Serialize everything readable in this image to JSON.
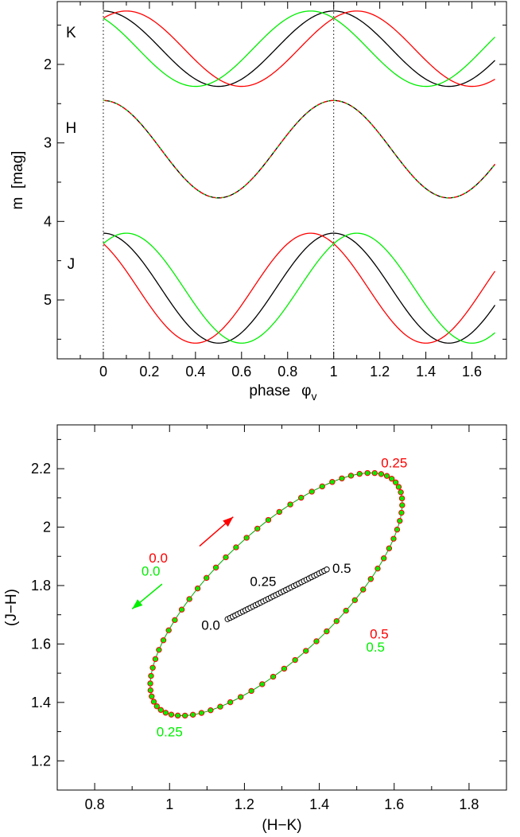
{
  "chart_data": [
    {
      "type": "line",
      "title": "",
      "xlabel": "phase",
      "xlabel_symbol": "φ",
      "xlabel_subscript": "v",
      "ylabel": "m  [mag]",
      "xlim": [
        -0.2,
        1.75
      ],
      "ylim": [
        5.75,
        1.2
      ],
      "y_inverted": true,
      "xticks": [
        0,
        0.2,
        0.4,
        0.6,
        0.8,
        1,
        1.2,
        1.4,
        1.6
      ],
      "xtick_labels": [
        "0",
        "0.2",
        "0.4",
        "0.6",
        "0.8",
        "1",
        "1.2",
        "1.4",
        "1.6"
      ],
      "yticks": [
        2,
        3,
        4,
        5
      ],
      "ytick_labels": [
        "2",
        "3",
        "4",
        "5"
      ],
      "vlines_dotted": [
        0,
        1
      ],
      "curve_x_range": [
        0,
        1.7
      ],
      "bands": [
        {
          "name": "K",
          "label": "K",
          "mean": 1.8,
          "amplitude": 0.48,
          "series": [
            {
              "name": "K black",
              "color": "#000000",
              "max_phase": 1.0
            },
            {
              "name": "K red",
              "color": "#ff0000",
              "max_phase": 0.1
            },
            {
              "name": "K green",
              "color": "#00ee00",
              "max_phase": 0.9
            }
          ]
        },
        {
          "name": "H",
          "label": "H",
          "mean": 3.08,
          "amplitude": 0.62,
          "series": [
            {
              "name": "H black",
              "color": "#000000",
              "max_phase": 0.0
            },
            {
              "name": "H red",
              "color": "#ff0000",
              "max_phase": 0.0
            },
            {
              "name": "H green",
              "color": "#00ee00",
              "max_phase": 0.0
            }
          ]
        },
        {
          "name": "J",
          "label": "J",
          "mean": 4.85,
          "amplitude": 0.7,
          "series": [
            {
              "name": "J black",
              "color": "#000000",
              "max_phase": 0.0
            },
            {
              "name": "J red",
              "color": "#ff0000",
              "max_phase": -0.1
            },
            {
              "name": "J green",
              "color": "#00ee00",
              "max_phase": 0.1
            }
          ]
        }
      ]
    },
    {
      "type": "scatter",
      "title": "",
      "xlabel": "(H−K)",
      "ylabel": "(J−H)",
      "xlim": [
        0.7,
        1.9
      ],
      "ylim": [
        1.1,
        2.35
      ],
      "xticks": [
        0.8,
        1,
        1.2,
        1.4,
        1.6,
        1.8
      ],
      "xtick_labels": [
        "0.8",
        "1",
        "1.2",
        "1.4",
        "1.6",
        "1.8"
      ],
      "yticks": [
        1.2,
        1.4,
        1.6,
        1.8,
        2,
        2.2
      ],
      "ytick_labels": [
        "1.2",
        "1.4",
        "1.6",
        "1.8",
        "2",
        "2.2"
      ],
      "ellipse": {
        "center": [
          1.285,
          1.77
        ],
        "phase_0": [
          1.075,
          1.79
        ],
        "phase_025": [
          1.548,
          2.185
        ],
        "phase_05": [
          1.495,
          1.75
        ],
        "phase_075": [
          1.022,
          1.355
        ],
        "n_points": 72,
        "marker_colors": {
          "fill": "#00ee00",
          "edge": "#ff0000"
        }
      },
      "line_series": {
        "start": [
          1.155,
          1.685
        ],
        "end": [
          1.42,
          1.855
        ],
        "n_points": 40,
        "color": "#000000"
      },
      "annotations": [
        {
          "text": "0.25",
          "x": 1.6,
          "y": 2.22,
          "color": "#ff0000"
        },
        {
          "text": "0.0",
          "x": 0.97,
          "y": 1.895,
          "color": "#ff0000"
        },
        {
          "text": "0.0",
          "x": 0.95,
          "y": 1.85,
          "color": "#00ee00"
        },
        {
          "text": "0.5",
          "x": 1.56,
          "y": 1.635,
          "color": "#ff0000"
        },
        {
          "text": "0.5",
          "x": 1.55,
          "y": 1.59,
          "color": "#00ee00"
        },
        {
          "text": "0.25",
          "x": 1.0,
          "y": 1.3,
          "color": "#00ee00"
        },
        {
          "text": "0.25",
          "x": 1.25,
          "y": 1.815,
          "color": "#000000"
        },
        {
          "text": "0.5",
          "x": 1.46,
          "y": 1.86,
          "color": "#000000"
        },
        {
          "text": "0.0",
          "x": 1.11,
          "y": 1.665,
          "color": "#000000"
        }
      ],
      "arrows": [
        {
          "name": "red-forward-arrow",
          "color": "#ff0000",
          "from": [
            1.08,
            1.935
          ],
          "to": [
            1.17,
            2.035
          ]
        },
        {
          "name": "green-backward-arrow",
          "color": "#00ee00",
          "from": [
            0.98,
            1.805
          ],
          "to": [
            0.9,
            1.72
          ]
        }
      ]
    }
  ]
}
